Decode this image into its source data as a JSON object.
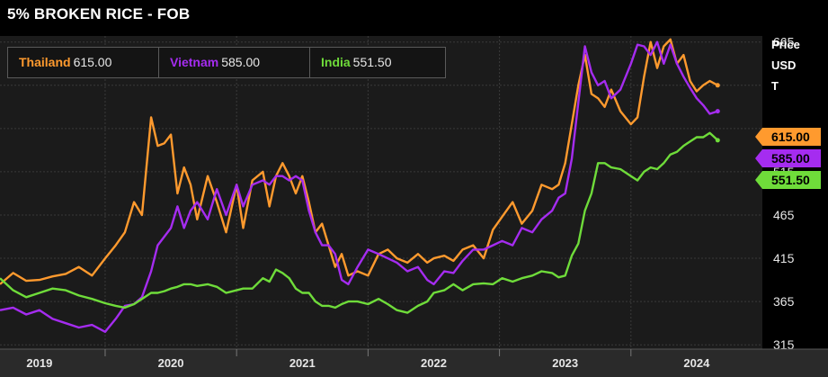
{
  "title": "5% BROKEN RICE - FOB",
  "axis_unit": [
    "Price",
    "USD",
    "T"
  ],
  "legend": [
    {
      "name": "Thailand",
      "value": "615.00",
      "color": "#ff9a2e"
    },
    {
      "name": "Vietnam",
      "value": "585.00",
      "color": "#a52cf0"
    },
    {
      "name": "India",
      "value": "551.50",
      "color": "#6fdc3a"
    }
  ],
  "chart_data": {
    "type": "line",
    "title": "5% BROKEN RICE - FOB",
    "ylabel": "Price USD T",
    "ylim": [
      310,
      672
    ],
    "xlim": [
      2018.7,
      2024.5
    ],
    "yticks": [
      315,
      365,
      415,
      465,
      515,
      565,
      615,
      665
    ],
    "xticks": [
      {
        "label": "2019",
        "x": 2019.0
      },
      {
        "label": "2020",
        "x": 2020.0
      },
      {
        "label": "2021",
        "x": 2021.0
      },
      {
        "label": "2022",
        "x": 2022.0
      },
      {
        "label": "2023",
        "x": 2023.0
      },
      {
        "label": "2024",
        "x": 2024.0
      }
    ],
    "grid": true,
    "legend_position": "top-left",
    "last_value_badges": [
      "615.00",
      "585.00",
      "551.50"
    ],
    "series": [
      {
        "name": "Thailand",
        "color": "#ff9a2e",
        "x": [
          2018.7,
          2018.8,
          2018.9,
          2019.0,
          2019.1,
          2019.2,
          2019.3,
          2019.4,
          2019.5,
          2019.58,
          2019.65,
          2019.72,
          2019.78,
          2019.85,
          2019.9,
          2019.95,
          2020.0,
          2020.05,
          2020.1,
          2020.15,
          2020.2,
          2020.28,
          2020.35,
          2020.42,
          2020.5,
          2020.55,
          2020.62,
          2020.7,
          2020.75,
          2020.8,
          2020.85,
          2020.9,
          2020.95,
          2021.0,
          2021.05,
          2021.1,
          2021.15,
          2021.2,
          2021.25,
          2021.3,
          2021.35,
          2021.42,
          2021.5,
          2021.58,
          2021.65,
          2021.72,
          2021.8,
          2021.88,
          2021.95,
          2022.0,
          2022.08,
          2022.15,
          2022.22,
          2022.3,
          2022.38,
          2022.45,
          2022.52,
          2022.6,
          2022.67,
          2022.75,
          2022.82,
          2022.9,
          2022.95,
          2023.0,
          2023.05,
          2023.1,
          2023.15,
          2023.2,
          2023.25,
          2023.3,
          2023.35,
          2023.42,
          2023.5,
          2023.55,
          2023.6,
          2023.65,
          2023.7,
          2023.75,
          2023.8,
          2023.85,
          2023.9,
          2023.95,
          2024.0,
          2024.05,
          2024.1,
          2024.16
        ],
        "y": [
          385,
          398,
          389,
          390,
          394,
          397,
          405,
          395,
          415,
          430,
          445,
          480,
          465,
          578,
          545,
          548,
          558,
          490,
          520,
          500,
          460,
          510,
          480,
          445,
          500,
          450,
          505,
          515,
          475,
          510,
          525,
          510,
          490,
          510,
          480,
          445,
          455,
          430,
          405,
          420,
          395,
          400,
          395,
          420,
          425,
          415,
          410,
          420,
          410,
          415,
          418,
          412,
          425,
          430,
          415,
          448,
          463,
          480,
          455,
          470,
          500,
          495,
          500,
          525,
          570,
          615,
          650,
          605,
          600,
          590,
          610,
          585,
          570,
          578,
          625,
          665,
          635,
          660,
          668,
          640,
          650,
          620,
          608,
          615,
          620,
          615
        ]
      },
      {
        "name": "Vietnam",
        "color": "#a52cf0",
        "x": [
          2018.7,
          2018.8,
          2018.9,
          2019.0,
          2019.1,
          2019.2,
          2019.3,
          2019.4,
          2019.5,
          2019.58,
          2019.65,
          2019.72,
          2019.78,
          2019.85,
          2019.9,
          2019.95,
          2020.0,
          2020.05,
          2020.1,
          2020.15,
          2020.2,
          2020.28,
          2020.35,
          2020.42,
          2020.5,
          2020.55,
          2020.62,
          2020.7,
          2020.75,
          2020.8,
          2020.85,
          2020.9,
          2020.95,
          2021.0,
          2021.05,
          2021.1,
          2021.15,
          2021.2,
          2021.25,
          2021.3,
          2021.35,
          2021.42,
          2021.5,
          2021.58,
          2021.65,
          2021.72,
          2021.8,
          2021.88,
          2021.95,
          2022.0,
          2022.08,
          2022.15,
          2022.22,
          2022.3,
          2022.38,
          2022.45,
          2022.52,
          2022.6,
          2022.67,
          2022.75,
          2022.82,
          2022.9,
          2022.95,
          2023.0,
          2023.05,
          2023.1,
          2023.15,
          2023.2,
          2023.25,
          2023.3,
          2023.35,
          2023.42,
          2023.5,
          2023.55,
          2023.6,
          2023.65,
          2023.7,
          2023.75,
          2023.8,
          2023.85,
          2023.9,
          2023.95,
          2024.0,
          2024.05,
          2024.1,
          2024.16
        ],
        "y": [
          355,
          358,
          350,
          355,
          345,
          340,
          335,
          338,
          330,
          345,
          360,
          362,
          370,
          400,
          430,
          440,
          450,
          475,
          450,
          470,
          480,
          460,
          495,
          465,
          500,
          475,
          500,
          505,
          500,
          510,
          510,
          505,
          510,
          505,
          470,
          445,
          430,
          430,
          420,
          390,
          385,
          405,
          425,
          420,
          415,
          410,
          400,
          405,
          390,
          385,
          400,
          398,
          412,
          425,
          425,
          430,
          435,
          430,
          450,
          445,
          460,
          470,
          485,
          490,
          530,
          595,
          660,
          630,
          615,
          620,
          600,
          610,
          640,
          662,
          660,
          650,
          665,
          640,
          662,
          640,
          625,
          612,
          600,
          592,
          582,
          585
        ]
      },
      {
        "name": "India",
        "color": "#6fdc3a",
        "x": [
          2018.7,
          2018.8,
          2018.9,
          2019.0,
          2019.1,
          2019.2,
          2019.3,
          2019.4,
          2019.5,
          2019.58,
          2019.65,
          2019.72,
          2019.78,
          2019.85,
          2019.9,
          2019.95,
          2020.0,
          2020.05,
          2020.1,
          2020.15,
          2020.2,
          2020.28,
          2020.35,
          2020.42,
          2020.5,
          2020.55,
          2020.62,
          2020.7,
          2020.75,
          2020.8,
          2020.85,
          2020.9,
          2020.95,
          2021.0,
          2021.05,
          2021.1,
          2021.15,
          2021.2,
          2021.25,
          2021.3,
          2021.35,
          2021.42,
          2021.5,
          2021.58,
          2021.65,
          2021.72,
          2021.8,
          2021.88,
          2021.95,
          2022.0,
          2022.08,
          2022.15,
          2022.22,
          2022.3,
          2022.38,
          2022.45,
          2022.52,
          2022.6,
          2022.67,
          2022.75,
          2022.82,
          2022.9,
          2022.95,
          2023.0,
          2023.05,
          2023.1,
          2023.15,
          2023.2,
          2023.25,
          2023.3,
          2023.35,
          2023.42,
          2023.5,
          2023.55,
          2023.6,
          2023.65,
          2023.7,
          2023.75,
          2023.8,
          2023.85,
          2023.9,
          2023.95,
          2024.0,
          2024.05,
          2024.1,
          2024.16
        ],
        "y": [
          392,
          378,
          370,
          375,
          380,
          378,
          372,
          368,
          363,
          360,
          358,
          362,
          368,
          375,
          375,
          377,
          380,
          382,
          385,
          385,
          383,
          385,
          382,
          375,
          378,
          380,
          380,
          392,
          388,
          402,
          398,
          392,
          380,
          375,
          375,
          365,
          360,
          360,
          358,
          362,
          365,
          365,
          362,
          368,
          362,
          355,
          352,
          360,
          365,
          375,
          378,
          385,
          378,
          385,
          386,
          385,
          392,
          388,
          392,
          395,
          400,
          398,
          393,
          395,
          418,
          432,
          470,
          490,
          525,
          525,
          520,
          518,
          510,
          505,
          515,
          520,
          518,
          525,
          535,
          538,
          545,
          550,
          555,
          555,
          560,
          551.5
        ]
      }
    ]
  }
}
